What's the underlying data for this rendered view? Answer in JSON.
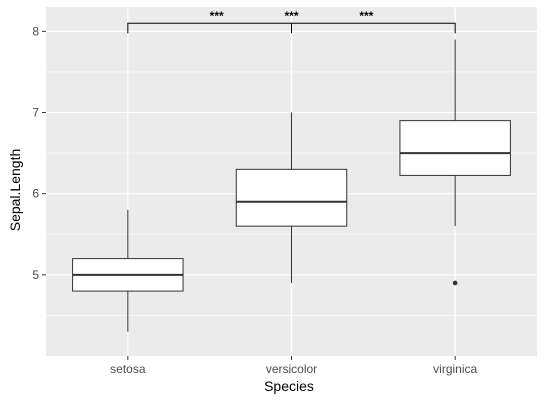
{
  "chart_data": {
    "type": "boxplot",
    "title": "",
    "xlabel": "Species",
    "ylabel": "Sepal.Length",
    "categories": [
      "setosa",
      "versicolor",
      "virginica"
    ],
    "boxes": [
      {
        "name": "setosa",
        "min": 4.3,
        "q1": 4.8,
        "median": 5.0,
        "q3": 5.2,
        "max": 5.8,
        "outliers": []
      },
      {
        "name": "versicolor",
        "min": 4.9,
        "q1": 5.6,
        "median": 5.9,
        "q3": 6.3,
        "max": 7.0,
        "outliers": []
      },
      {
        "name": "virginica",
        "min": 5.6,
        "q1": 6.225,
        "median": 6.5,
        "q3": 6.9,
        "max": 7.9,
        "outliers": [
          4.9
        ]
      }
    ],
    "ylim": [
      4.0,
      8.3
    ],
    "yticks": [
      5,
      6,
      7,
      8
    ],
    "ytick_labels": [
      "5",
      "6",
      "7",
      "8"
    ],
    "grid": true,
    "legend": "none",
    "annotation": {
      "bracket_y": 8.1,
      "labels": [
        "***",
        "***",
        "***"
      ]
    },
    "colors": {
      "panel": "#ebebeb",
      "grid_major": "#ffffff",
      "box_fill": "#ffffff",
      "box_line": "#333333"
    }
  }
}
